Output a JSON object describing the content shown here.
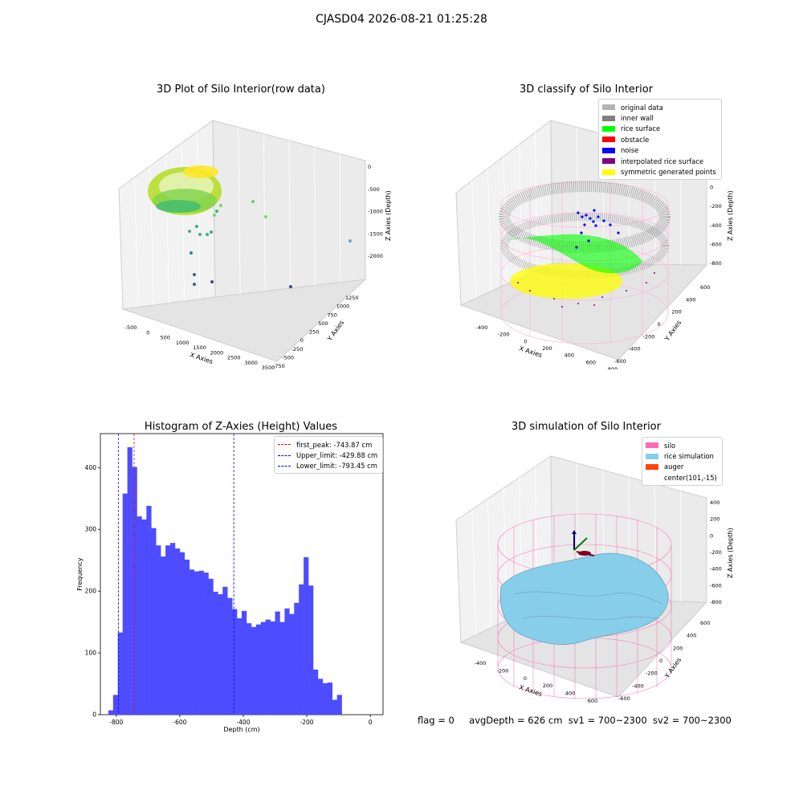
{
  "suptitle": "CJASD04 2026-08-21 01:25:28",
  "status_line": {
    "flag": "flag = 0",
    "avg_depth": "avgDepth = 626 cm",
    "sv1": "sv1 = 700~2300",
    "sv2": "sv2 = 700~2300"
  },
  "chart_data": [
    {
      "type": "scatter",
      "projection": "3d",
      "title": "3D Plot of Silo Interior(row data)",
      "xlabel": "X Axies",
      "ylabel": "Y Axies",
      "zlabel": "Z Axies (Depth)",
      "x_ticks": [
        "-500",
        "0",
        "500",
        "1000",
        "1500",
        "2000",
        "2500",
        "3000",
        "3500"
      ],
      "y_ticks": [
        "-750",
        "-500",
        "-250",
        "0",
        "250",
        "500",
        "750",
        "1000",
        "1250"
      ],
      "z_ticks": [
        "-2000",
        "-1500",
        "-1000",
        "-500",
        "0"
      ],
      "colormap": "viridis"
    },
    {
      "type": "scatter",
      "projection": "3d",
      "title": "3D classify of Silo Interior",
      "xlabel": "X Axies",
      "ylabel": "Y Axies",
      "zlabel": "Z Axies (Depth)",
      "x_ticks": [
        "-400",
        "-200",
        "0",
        "200",
        "400",
        "600",
        "800"
      ],
      "y_ticks": [
        "-600",
        "-400",
        "-200",
        "0",
        "200",
        "400",
        "600"
      ],
      "z_ticks": [
        "-800",
        "-600",
        "-400",
        "-200",
        "0",
        "200"
      ],
      "legend_position": "upper-right",
      "legend": [
        {
          "label": "original data",
          "color": "#b3b3b3"
        },
        {
          "label": "inner wall",
          "color": "#808080"
        },
        {
          "label": "rice surface",
          "color": "#00ff00"
        },
        {
          "label": "obstacle",
          "color": "#ff0000"
        },
        {
          "label": "noise",
          "color": "#0000ff"
        },
        {
          "label": "interpolated rice surface",
          "color": "#800080"
        },
        {
          "label": "symmetric generated points",
          "color": "#ffff00"
        }
      ]
    },
    {
      "type": "bar",
      "title": "Histogram of Z-Axies (Height) Values",
      "xlabel": "Depth (cm)",
      "ylabel": "Frequency",
      "xlim": [
        -850,
        40
      ],
      "ylim": [
        0,
        455
      ],
      "x_ticks": [
        -800,
        -600,
        -400,
        -200,
        0
      ],
      "y_ticks": [
        0,
        100,
        200,
        300,
        400
      ],
      "bar_color": "#4d4dff",
      "bin_width": 15,
      "bin_start": -825,
      "values": [
        7,
        32,
        133,
        358,
        433,
        401,
        321,
        316,
        338,
        302,
        274,
        256,
        274,
        278,
        269,
        263,
        251,
        235,
        232,
        233,
        230,
        220,
        199,
        195,
        207,
        189,
        171,
        156,
        168,
        148,
        142,
        146,
        150,
        154,
        151,
        167,
        150,
        172,
        163,
        181,
        211,
        255,
        209,
        73,
        58,
        51,
        52,
        24,
        32
      ],
      "vlines": [
        {
          "label": "first_peak: -743.87 cm",
          "x": -743.87,
          "color": "#ff0000"
        },
        {
          "label": "Upper_limit: -429.88 cm",
          "x": -429.88,
          "color": "#0000ff"
        },
        {
          "label": "Lower_limit: -793.45 cm",
          "x": -793.45,
          "color": "#0000ff"
        }
      ],
      "legend_position": "upper-right"
    },
    {
      "type": "surface",
      "projection": "3d",
      "title": "3D simulation of Silo Interior",
      "xlabel": "X Axies",
      "ylabel": "Y Axies",
      "zlabel": "Z Axies (Depth)",
      "x_ticks": [
        "-400",
        "-200",
        "0",
        "200",
        "400",
        "600"
      ],
      "y_ticks": [
        "-600",
        "-400",
        "-200",
        "0",
        "200",
        "400",
        "600"
      ],
      "z_ticks": [
        "-800",
        "-600",
        "-400",
        "-200",
        "0",
        "200",
        "400"
      ],
      "legend_position": "upper-right",
      "legend": [
        {
          "label": "silo",
          "color": "#ff69b4"
        },
        {
          "label": "rice simulation",
          "color": "#87ceeb"
        },
        {
          "label": "auger",
          "color": "#ff4500"
        },
        {
          "label": "center(101,-15)",
          "color": ""
        }
      ]
    }
  ]
}
